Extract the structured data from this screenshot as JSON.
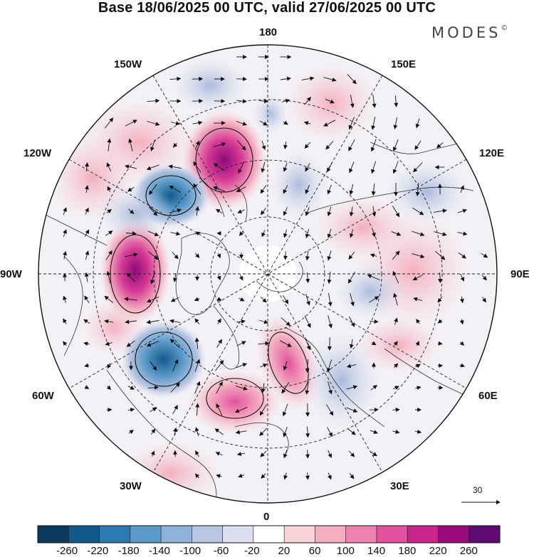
{
  "header": {
    "title": "Base 18/06/2025 00 UTC, valid 27/06/2025 00 UTC",
    "brand": "MODES",
    "brand_mark": "©"
  },
  "map": {
    "projection": "north-polar-stereographic",
    "longitude_labels": {
      "top": "180",
      "bottom": "0",
      "left": "90W",
      "right": "90E",
      "upper_left_1": "150W",
      "upper_left_2": "120W",
      "lower_left_1": "60W",
      "lower_left_2": "30W",
      "upper_right_1": "150E",
      "upper_right_2": "120E",
      "lower_right_1": "60E",
      "lower_right_2": "30E"
    },
    "reference_vector_label": "30"
  },
  "colorbar": {
    "labels": [
      "-260",
      "-220",
      "-180",
      "-140",
      "-100",
      "-60",
      "-20",
      "20",
      "60",
      "100",
      "140",
      "180",
      "220",
      "260"
    ],
    "colors": [
      "#0b3a5c",
      "#135a8c",
      "#2c7ab2",
      "#5b9ac8",
      "#8fb3d9",
      "#b8c6e2",
      "#dcdff0",
      "#ffffff",
      "#f8d3d8",
      "#f4aec1",
      "#ee82b0",
      "#e2529e",
      "#c8248a",
      "#9a0a7a",
      "#5e0a73"
    ]
  },
  "colors": {
    "land_fill": "#e6e6e6",
    "positive_strong": "#d63a94",
    "negative_strong": "#1e6aa6"
  }
}
